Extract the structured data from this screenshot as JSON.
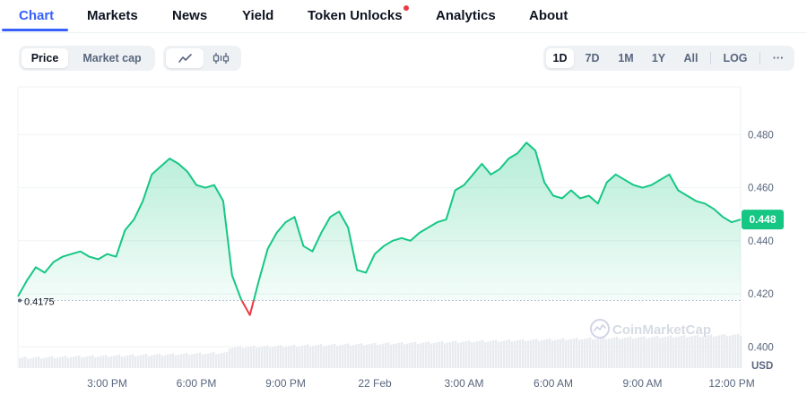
{
  "tabs": [
    {
      "label": "Chart",
      "active": true
    },
    {
      "label": "Markets",
      "active": false
    },
    {
      "label": "News",
      "active": false
    },
    {
      "label": "Yield",
      "active": false
    },
    {
      "label": "Token Unlocks",
      "active": false,
      "has_notification_dot": true
    },
    {
      "label": "Analytics",
      "active": false
    },
    {
      "label": "About",
      "active": false
    }
  ],
  "metric_toggle": {
    "options": [
      "Price",
      "Market cap"
    ],
    "selected": "Price"
  },
  "chart_style_toggle": {
    "options": [
      "line-chart-icon",
      "candlestick-icon"
    ],
    "selected": "line-chart-icon"
  },
  "time_ranges": {
    "options": [
      "1D",
      "7D",
      "1M",
      "1Y",
      "All"
    ],
    "selected": "1D"
  },
  "scale_button": "LOG",
  "more_button": "···",
  "watermark": "CoinMarketCap",
  "colors": {
    "up": "#16c784",
    "down": "#ea3943",
    "accent": "#3861fb",
    "text": "#0d1421",
    "muted": "#58667e"
  },
  "chart_data": {
    "type": "line",
    "currency_label": "USD",
    "y_ticks": [
      "0.400",
      "0.420",
      "0.440",
      "0.460",
      "0.480"
    ],
    "ylim": [
      0.392,
      0.498
    ],
    "x_ticks": [
      "3:00 PM",
      "6:00 PM",
      "9:00 PM",
      "22 Feb",
      "3:00 AM",
      "6:00 AM",
      "9:00 AM",
      "12:00 PM"
    ],
    "x_tick_hours": [
      3,
      6,
      9,
      12,
      15,
      18,
      21,
      24
    ],
    "xlim": [
      0.0,
      24.3
    ],
    "baseline_price": 0.4175,
    "baseline_label": "0.4175",
    "current_price": 0.448,
    "current_label": "0.448",
    "series": [
      {
        "hours": [
          0.0,
          0.3,
          0.6,
          0.9,
          1.2,
          1.5,
          1.8,
          2.1,
          2.4,
          2.7,
          3.0,
          3.3,
          3.6,
          3.9,
          4.2,
          4.5,
          4.8,
          5.1,
          5.4,
          5.7,
          6.0,
          6.3,
          6.6,
          6.9,
          7.2,
          7.5,
          7.8,
          8.1,
          8.4,
          8.7,
          9.0,
          9.3,
          9.6,
          9.9,
          10.2,
          10.5,
          10.8,
          11.1,
          11.4,
          11.7,
          12.0,
          12.3,
          12.6,
          12.9,
          13.2,
          13.5,
          13.8,
          14.1,
          14.4,
          14.7,
          15.0,
          15.3,
          15.6,
          15.9,
          16.2,
          16.5,
          16.8,
          17.1,
          17.4,
          17.7,
          18.0,
          18.3,
          18.6,
          18.9,
          19.2,
          19.5,
          19.8,
          20.1,
          20.4,
          20.7,
          21.0,
          21.3,
          21.6,
          21.9,
          22.2,
          22.5,
          22.8,
          23.1,
          23.4,
          23.7,
          24.0,
          24.3
        ],
        "prices": [
          0.419,
          0.425,
          0.43,
          0.428,
          0.432,
          0.434,
          0.435,
          0.436,
          0.434,
          0.433,
          0.435,
          0.434,
          0.444,
          0.448,
          0.455,
          0.465,
          0.468,
          0.471,
          0.469,
          0.466,
          0.461,
          0.46,
          0.461,
          0.455,
          0.427,
          0.418,
          0.412,
          0.425,
          0.437,
          0.443,
          0.447,
          0.449,
          0.438,
          0.436,
          0.443,
          0.449,
          0.451,
          0.445,
          0.429,
          0.428,
          0.435,
          0.438,
          0.44,
          0.441,
          0.44,
          0.443,
          0.445,
          0.447,
          0.448,
          0.459,
          0.461,
          0.465,
          0.469,
          0.465,
          0.467,
          0.471,
          0.473,
          0.477,
          0.474,
          0.462,
          0.457,
          0.456,
          0.459,
          0.456,
          0.457,
          0.454,
          0.462,
          0.465,
          0.463,
          0.461,
          0.46,
          0.461,
          0.463,
          0.465,
          0.459,
          0.457,
          0.455,
          0.454,
          0.452,
          0.449,
          0.447,
          0.448
        ]
      }
    ]
  }
}
